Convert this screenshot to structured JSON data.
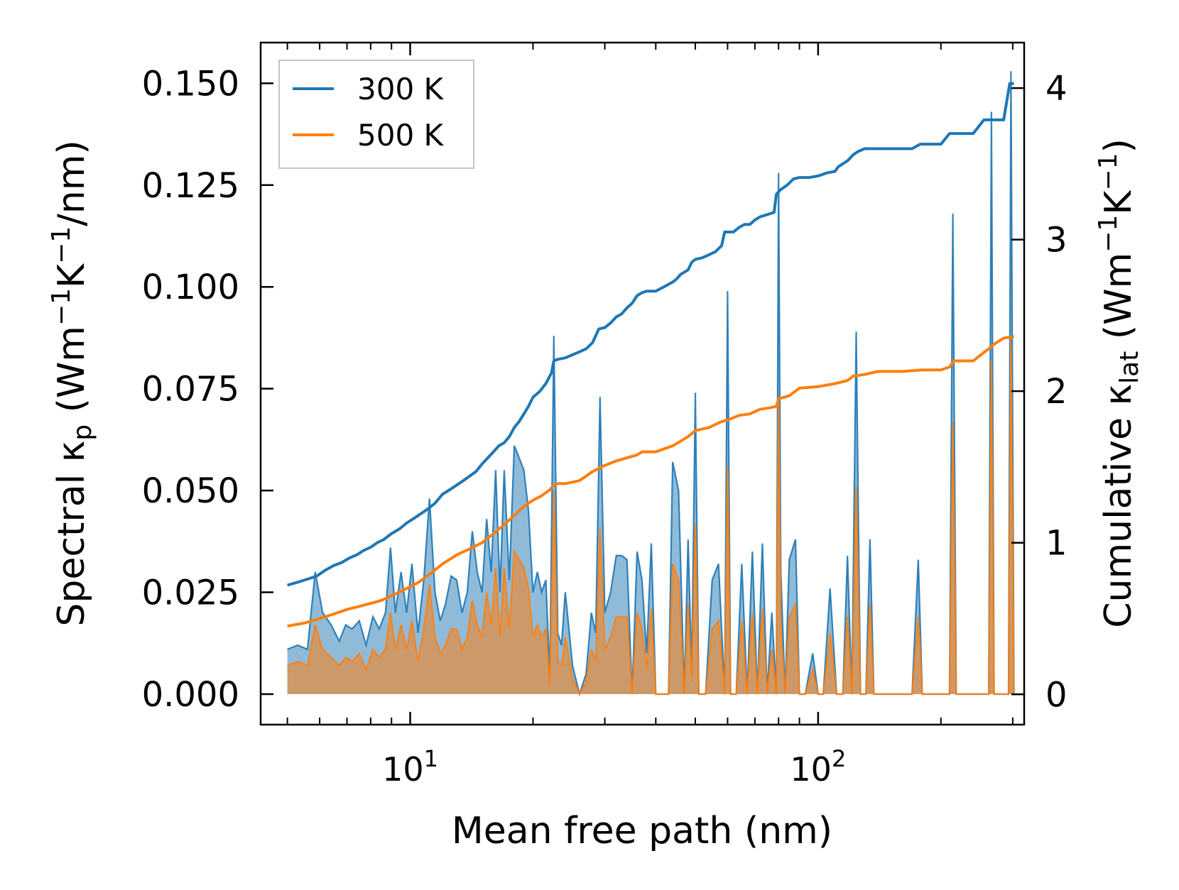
{
  "chart_data": {
    "type": "line",
    "xscale": "log",
    "xlabel": "Mean free path (nm)",
    "ylabel_left": {
      "main": "Spectral κ",
      "sub": "p",
      "units_pre": " (Wm",
      "sup1": "−1",
      "mid": "K",
      "sup2": "−1",
      "units_post": "/nm)"
    },
    "ylabel_right": {
      "main": "Cumulative κ",
      "sub": "lat",
      "units_pre": " (Wm",
      "sup1": "−1",
      "mid": "K",
      "sup2": "−1",
      "units_post": ")"
    },
    "xlim": [
      4.3,
      320
    ],
    "ylim_left": [
      -0.0075,
      0.16
    ],
    "ylim_right": [
      -0.2,
      4.3
    ],
    "x_major_ticks": [
      {
        "value": 10,
        "base": "10",
        "exp": "1"
      },
      {
        "value": 100,
        "base": "10",
        "exp": "2"
      }
    ],
    "y_left_ticks": [
      {
        "value": 0.0,
        "label": "0.000"
      },
      {
        "value": 0.025,
        "label": "0.025"
      },
      {
        "value": 0.05,
        "label": "0.050"
      },
      {
        "value": 0.075,
        "label": "0.075"
      },
      {
        "value": 0.1,
        "label": "0.100"
      },
      {
        "value": 0.125,
        "label": "0.125"
      },
      {
        "value": 0.15,
        "label": "0.150"
      }
    ],
    "y_right_ticks": [
      {
        "value": 0,
        "label": "0"
      },
      {
        "value": 1,
        "label": "1"
      },
      {
        "value": 2,
        "label": "2"
      },
      {
        "value": 3,
        "label": "3"
      },
      {
        "value": 4,
        "label": "4"
      }
    ],
    "legend": {
      "location": "top-left",
      "entries": [
        {
          "label": "300 K",
          "color": "#1f77b4"
        },
        {
          "label": "500 K",
          "color": "#ff7f0e"
        }
      ]
    },
    "series": [
      {
        "name": "300 K",
        "color": "#1f77b4",
        "spectral_x": [
          5,
          5.3,
          5.6,
          5.85,
          6.1,
          6.4,
          6.7,
          6.95,
          7.2,
          7.5,
          7.8,
          8.1,
          8.4,
          8.7,
          8.95,
          9.2,
          9.5,
          9.8,
          10.1,
          10.45,
          10.8,
          11.15,
          11.5,
          11.85,
          12.2,
          12.6,
          13.0,
          13.4,
          13.8,
          14.2,
          14.6,
          15.0,
          15.4,
          15.8,
          16.2,
          16.6,
          17.0,
          17.5,
          18.0,
          18.5,
          19.0,
          19.5,
          20.0,
          20.5,
          21.0,
          21.5,
          22.0,
          22.5,
          23.0,
          23.5,
          24.0,
          25.0,
          26.0,
          27.0,
          27.8,
          28.5,
          29.2,
          30.0,
          31.0,
          32.0,
          33.0,
          34.0,
          35.0,
          36.0,
          37.0,
          38.0,
          39.0,
          40.0,
          42.0,
          43.0,
          44.0,
          45.5,
          47.0,
          48.0,
          49.0,
          50.0,
          51.0,
          53.0,
          55.0,
          57.0,
          59.0,
          60.0,
          61.0,
          63.0,
          65.0,
          67.0,
          69.0,
          71.0,
          73.0,
          75.0,
          77.0,
          79.0,
          80.0,
          81.0,
          83.0,
          85.0,
          88.0,
          90.0,
          93.0,
          97.0,
          100.0,
          103.0,
          107.0,
          111.0,
          115.0,
          118.0,
          121.0,
          124.0,
          127.0,
          131.0,
          134.0,
          137.0,
          140.0,
          160.0,
          170.0,
          176.0,
          180.0,
          200.0,
          210.0,
          214.0,
          218.0,
          250.0,
          262.0,
          266.0,
          270.0,
          285.0,
          293.0,
          297.0,
          302.0
        ],
        "spectral_y": [
          0.011,
          0.012,
          0.011,
          0.03,
          0.02,
          0.017,
          0.013,
          0.017,
          0.016,
          0.018,
          0.012,
          0.019,
          0.016,
          0.02,
          0.036,
          0.02,
          0.03,
          0.02,
          0.032,
          0.015,
          0.028,
          0.048,
          0.025,
          0.018,
          0.022,
          0.029,
          0.028,
          0.02,
          0.025,
          0.04,
          0.03,
          0.025,
          0.043,
          0.03,
          0.055,
          0.025,
          0.055,
          0.028,
          0.061,
          0.058,
          0.055,
          0.045,
          0.025,
          0.03,
          0.025,
          0.028,
          0.004,
          0.088,
          0.015,
          0.012,
          0.025,
          0.007,
          0.0,
          0.005,
          0.02,
          0.015,
          0.073,
          0.02,
          0.025,
          0.034,
          0.034,
          0.033,
          0.0,
          0.035,
          0.028,
          0.01,
          0.037,
          0.0,
          0.0,
          0.0,
          0.057,
          0.05,
          0.0,
          0.038,
          0.005,
          0.074,
          0.0,
          0.0,
          0.028,
          0.032,
          0.0,
          0.099,
          0.0,
          0.0,
          0.032,
          0.0,
          0.035,
          0.0,
          0.037,
          0.0,
          0.02,
          0.0,
          0.128,
          0.03,
          0.0,
          0.033,
          0.038,
          0.0,
          0.0,
          0.01,
          0.0,
          0.0,
          0.026,
          0.0,
          0.0,
          0.034,
          0.0,
          0.089,
          0.0,
          0.0,
          0.038,
          0.0,
          0.0,
          0.0,
          0.0,
          0.033,
          0.0,
          0.0,
          0.0,
          0.118,
          0.0,
          0.0,
          0.0,
          0.143,
          0.0,
          0.0,
          0.0,
          0.153,
          0.0
        ],
        "cumulative_x": [
          5,
          5.3,
          5.6,
          5.9,
          6.2,
          6.5,
          6.8,
          7.1,
          7.4,
          7.7,
          8.0,
          8.3,
          8.6,
          9.0,
          9.4,
          9.8,
          10.2,
          10.6,
          11.0,
          11.5,
          12.0,
          12.5,
          13.0,
          13.5,
          14.0,
          14.5,
          15.0,
          15.5,
          16.0,
          16.5,
          17.0,
          17.5,
          18.0,
          18.5,
          19.0,
          19.5,
          20.0,
          20.8,
          21.5,
          22.2,
          22.5,
          23.0,
          24.0,
          25.0,
          26.0,
          27.0,
          28.0,
          29.0,
          30.0,
          31.0,
          32.0,
          33.0,
          34.0,
          35.0,
          36.0,
          37.0,
          38.0,
          40.0,
          42.0,
          44.0,
          45.0,
          46.0,
          48.0,
          49.0,
          50.0,
          52.0,
          54.0,
          56.0,
          58.0,
          59.0,
          62.0,
          64.0,
          66.0,
          68.0,
          70.0,
          72.0,
          74.0,
          76.0,
          78.0,
          79.0,
          81.0,
          84.0,
          87.0,
          90.0,
          95.0,
          100.0,
          105.0,
          110.0,
          112.0,
          115.0,
          118.0,
          122.0,
          125.0,
          130.0,
          135.0,
          140.0,
          145.0,
          160.0,
          170.0,
          178.0,
          185.0,
          200.0,
          210.0,
          215.0,
          240.0,
          255.0,
          262.0,
          270.0,
          285.0,
          295.0,
          302.0
        ],
        "cumulative_y": [
          0.72,
          0.74,
          0.76,
          0.78,
          0.82,
          0.85,
          0.87,
          0.9,
          0.92,
          0.95,
          0.97,
          1.0,
          1.02,
          1.06,
          1.09,
          1.13,
          1.16,
          1.19,
          1.22,
          1.26,
          1.32,
          1.35,
          1.38,
          1.41,
          1.44,
          1.47,
          1.52,
          1.56,
          1.6,
          1.64,
          1.66,
          1.7,
          1.76,
          1.8,
          1.85,
          1.9,
          1.96,
          2.0,
          2.05,
          2.12,
          2.2,
          2.21,
          2.22,
          2.24,
          2.26,
          2.28,
          2.32,
          2.41,
          2.42,
          2.45,
          2.49,
          2.51,
          2.55,
          2.58,
          2.63,
          2.65,
          2.66,
          2.66,
          2.69,
          2.72,
          2.74,
          2.77,
          2.8,
          2.85,
          2.87,
          2.88,
          2.9,
          2.92,
          2.96,
          3.05,
          3.05,
          3.08,
          3.1,
          3.1,
          3.13,
          3.15,
          3.16,
          3.17,
          3.18,
          3.3,
          3.33,
          3.36,
          3.4,
          3.41,
          3.41,
          3.42,
          3.44,
          3.45,
          3.48,
          3.5,
          3.52,
          3.56,
          3.58,
          3.6,
          3.6,
          3.6,
          3.6,
          3.6,
          3.6,
          3.63,
          3.63,
          3.63,
          3.7,
          3.7,
          3.7,
          3.79,
          3.79,
          3.79,
          3.79,
          4.03,
          4.03
        ]
      },
      {
        "name": "500 K",
        "color": "#ff7f0e",
        "spectral_x": [
          5,
          5.3,
          5.6,
          5.85,
          6.1,
          6.4,
          6.7,
          6.95,
          7.2,
          7.5,
          7.8,
          8.1,
          8.4,
          8.7,
          8.95,
          9.2,
          9.5,
          9.8,
          10.1,
          10.45,
          10.8,
          11.15,
          11.5,
          11.85,
          12.2,
          12.6,
          13.0,
          13.4,
          13.8,
          14.2,
          14.6,
          15.0,
          15.4,
          15.8,
          16.2,
          16.6,
          17.0,
          17.5,
          18.0,
          18.5,
          19.0,
          19.5,
          20.0,
          20.5,
          21.0,
          21.5,
          22.0,
          22.5,
          23.0,
          23.5,
          24.0,
          25.0,
          26.0,
          27.0,
          27.8,
          28.5,
          29.2,
          30.0,
          31.0,
          32.0,
          33.0,
          34.0,
          35.0,
          36.0,
          37.0,
          38.0,
          39.0,
          40.0,
          42.0,
          43.0,
          44.0,
          45.5,
          47.0,
          48.0,
          49.0,
          50.0,
          51.0,
          53.0,
          55.0,
          57.0,
          59.0,
          60.0,
          61.0,
          63.0,
          65.0,
          67.0,
          69.0,
          71.0,
          73.0,
          75.0,
          77.0,
          79.0,
          80.0,
          81.0,
          83.0,
          85.0,
          88.0,
          90.0,
          93.0,
          97.0,
          100.0,
          103.0,
          107.0,
          111.0,
          115.0,
          118.0,
          121.0,
          124.0,
          127.0,
          131.0,
          134.0,
          137.0,
          140.0,
          160.0,
          170.0,
          176.0,
          180.0,
          200.0,
          210.0,
          214.0,
          218.0,
          250.0,
          262.0,
          266.0,
          270.0,
          285.0,
          293.0,
          297.0,
          302.0
        ],
        "spectral_y": [
          0.007,
          0.008,
          0.007,
          0.017,
          0.011,
          0.009,
          0.007,
          0.009,
          0.008,
          0.01,
          0.006,
          0.011,
          0.009,
          0.011,
          0.02,
          0.011,
          0.017,
          0.011,
          0.018,
          0.008,
          0.016,
          0.027,
          0.014,
          0.01,
          0.012,
          0.016,
          0.016,
          0.011,
          0.014,
          0.023,
          0.017,
          0.014,
          0.025,
          0.017,
          0.031,
          0.014,
          0.031,
          0.016,
          0.035,
          0.033,
          0.031,
          0.026,
          0.014,
          0.017,
          0.014,
          0.016,
          0.002,
          0.05,
          0.008,
          0.007,
          0.014,
          0.004,
          0.0,
          0.003,
          0.011,
          0.008,
          0.041,
          0.011,
          0.014,
          0.019,
          0.019,
          0.019,
          0.0,
          0.02,
          0.016,
          0.006,
          0.021,
          0.0,
          0.0,
          0.0,
          0.032,
          0.028,
          0.0,
          0.022,
          0.003,
          0.042,
          0.0,
          0.0,
          0.016,
          0.018,
          0.0,
          0.056,
          0.0,
          0.0,
          0.018,
          0.0,
          0.02,
          0.0,
          0.021,
          0.0,
          0.011,
          0.0,
          0.073,
          0.017,
          0.0,
          0.019,
          0.022,
          0.0,
          0.0,
          0.006,
          0.0,
          0.0,
          0.015,
          0.0,
          0.0,
          0.019,
          0.0,
          0.051,
          0.0,
          0.0,
          0.022,
          0.0,
          0.0,
          0.0,
          0.0,
          0.019,
          0.0,
          0.0,
          0.0,
          0.067,
          0.0,
          0.0,
          0.0,
          0.082,
          0.0,
          0.0,
          0.0,
          0.087,
          0.0
        ],
        "cumulative_x": [
          5,
          5.5,
          6.0,
          6.5,
          7.0,
          7.5,
          8.0,
          8.5,
          9.0,
          9.5,
          10.0,
          10.5,
          11.0,
          11.5,
          12.0,
          12.5,
          13.0,
          14.0,
          15.0,
          16.0,
          17.0,
          18.0,
          19.0,
          20.0,
          21.0,
          22.0,
          22.5,
          23.0,
          24.0,
          25.0,
          26.0,
          27.0,
          28.0,
          29.0,
          30.0,
          32.0,
          34.0,
          36.0,
          37.0,
          40.0,
          42.0,
          44.0,
          46.0,
          48.0,
          50.0,
          54.0,
          58.0,
          60.0,
          64.0,
          68.0,
          72.0,
          76.0,
          79.0,
          80.0,
          85.0,
          90.0,
          100.0,
          110.0,
          118.0,
          122.0,
          130.0,
          140.0,
          160.0,
          180.0,
          200.0,
          210.0,
          215.0,
          240.0,
          262.0,
          270.0,
          285.0,
          302.0
        ],
        "cumulative_y": [
          0.45,
          0.47,
          0.5,
          0.53,
          0.56,
          0.58,
          0.6,
          0.62,
          0.65,
          0.68,
          0.71,
          0.74,
          0.78,
          0.82,
          0.86,
          0.89,
          0.92,
          0.96,
          1.0,
          1.06,
          1.12,
          1.18,
          1.24,
          1.28,
          1.31,
          1.35,
          1.38,
          1.39,
          1.39,
          1.4,
          1.41,
          1.44,
          1.47,
          1.49,
          1.51,
          1.54,
          1.56,
          1.58,
          1.6,
          1.6,
          1.62,
          1.64,
          1.67,
          1.7,
          1.74,
          1.76,
          1.8,
          1.81,
          1.84,
          1.85,
          1.88,
          1.89,
          1.9,
          1.95,
          1.97,
          2.02,
          2.03,
          2.05,
          2.07,
          2.1,
          2.11,
          2.13,
          2.13,
          2.14,
          2.14,
          2.16,
          2.2,
          2.2,
          2.28,
          2.31,
          2.35,
          2.36
        ]
      }
    ]
  }
}
